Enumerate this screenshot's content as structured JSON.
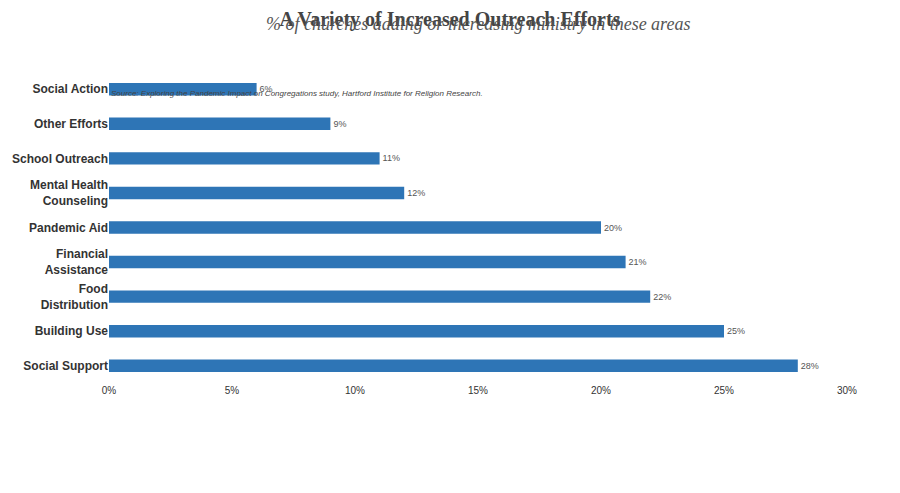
{
  "chart_data": {
    "type": "bar",
    "orientation": "horizontal",
    "title": "A Variety of Increased Outreach Efforts",
    "subtitle": "% of churches adding or increasing ministry in these areas",
    "categories": [
      "Social Action",
      "Other Efforts",
      "School Outreach",
      "Mental Health Counseling",
      "Pandemic Aid",
      "Financial Assistance",
      "Food Distribution",
      "Building Use",
      "Social Support"
    ],
    "values": [
      6,
      9,
      11,
      12,
      20,
      21,
      22,
      25,
      28
    ],
    "value_labels": [
      "6%",
      "9%",
      "11%",
      "12%",
      "20%",
      "21%",
      "22%",
      "25%",
      "28%"
    ],
    "data_labels": true,
    "color": "#2e75b6",
    "xlim": [
      0,
      30
    ],
    "xticks": [
      {
        "value": 0,
        "label": "0%"
      },
      {
        "value": 5,
        "label": "5%"
      },
      {
        "value": 10,
        "label": "10%"
      },
      {
        "value": 15,
        "label": "15%"
      },
      {
        "value": 20,
        "label": "20%"
      },
      {
        "value": 25,
        "label": "25%"
      },
      {
        "value": 30,
        "label": "30%"
      }
    ],
    "grid": false,
    "annotations": [
      "Source: Exploring the Pandemic Impact on Congregations study, Hartford Institute for Religion Research."
    ]
  }
}
